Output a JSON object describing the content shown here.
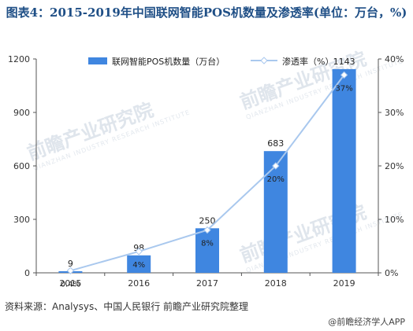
{
  "title": "图表4：2015-2019年中国联网智能POS机数量及渗透率(单位：万台，%)",
  "source": "资料来源：Analysys、中国人民银行 前瞻产业研究院整理",
  "brand": "@前瞻经济学人APP",
  "watermark": {
    "text": "前瞻产业研究院",
    "sub": "QIANZHAN INDUSTRY RESEARCH INSTITUTE"
  },
  "colors": {
    "bar": "#3f86e0",
    "line": "#a9c8ee",
    "marker_fill": "#ffffff",
    "axis": "#555555"
  },
  "chart_data": {
    "type": "bar",
    "categories": [
      "2015",
      "2016",
      "2017",
      "2018",
      "2019"
    ],
    "series": [
      {
        "name": "联网智能POS机数量（万台）",
        "type": "bar",
        "axis": "left",
        "values": [
          9,
          98,
          250,
          683,
          1143
        ],
        "labels": [
          "9",
          "98",
          "250",
          "683",
          "1143"
        ]
      },
      {
        "name": "渗透率（%）",
        "type": "line",
        "axis": "right",
        "values": [
          0.4,
          4,
          8,
          20,
          37
        ],
        "labels": [
          "0.4%",
          "4%",
          "8%",
          "20%",
          "37%"
        ]
      }
    ],
    "y_left": {
      "ylim": [
        0,
        1200
      ],
      "ticks": [
        0,
        300,
        600,
        900,
        1200
      ]
    },
    "y_right": {
      "ylim": [
        0,
        40
      ],
      "ticks": [
        0,
        10,
        20,
        30,
        40
      ],
      "tick_labels": [
        "0%",
        "10%",
        "20%",
        "30%",
        "40%"
      ]
    },
    "legend": "top-center",
    "grid": false
  }
}
